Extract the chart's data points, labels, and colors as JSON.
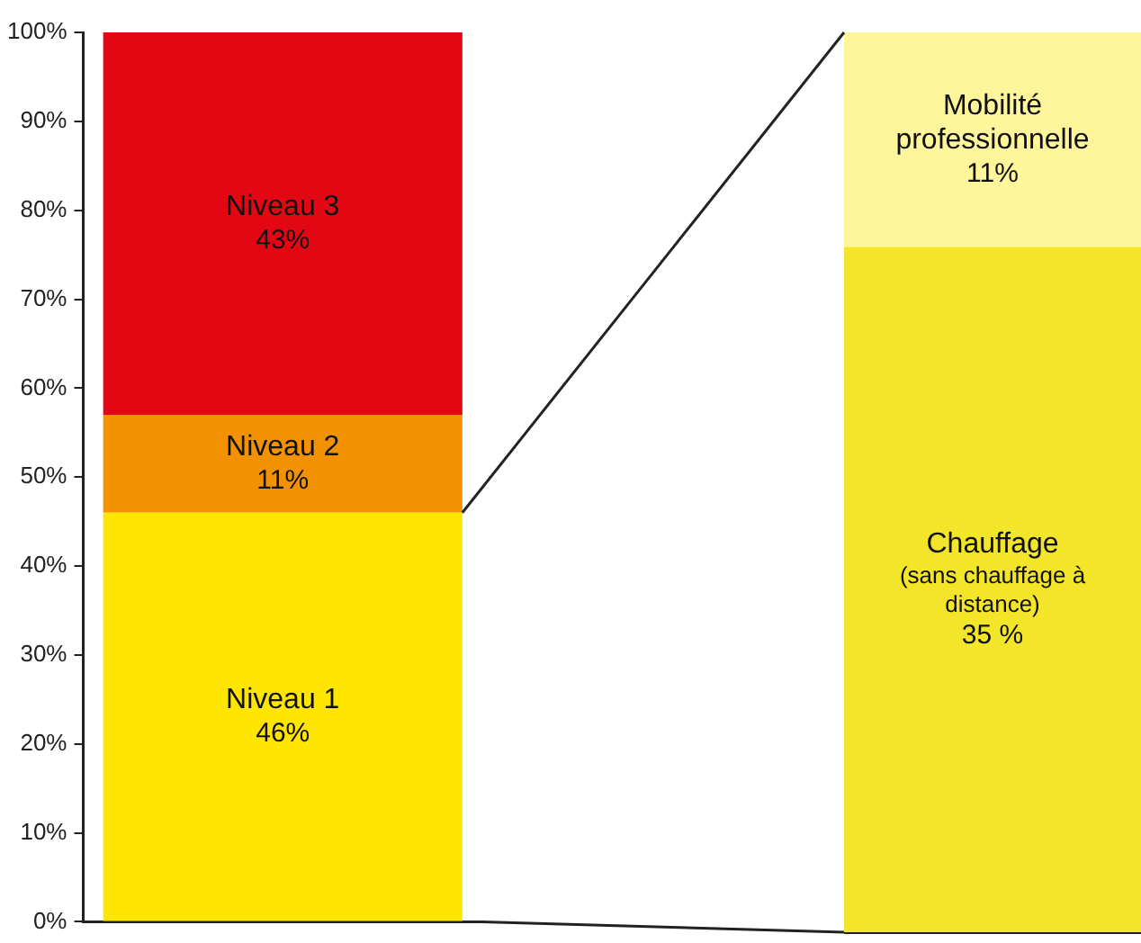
{
  "chart_data": [
    {
      "type": "bar",
      "stacked": true,
      "categories": [
        null
      ],
      "ylim": [
        0,
        100
      ],
      "yticks": [
        {
          "value": 0,
          "label": "0%"
        },
        {
          "value": 10,
          "label": "10%"
        },
        {
          "value": 20,
          "label": "20%"
        },
        {
          "value": 30,
          "label": "30%"
        },
        {
          "value": 40,
          "label": "40%"
        },
        {
          "value": 50,
          "label": "50%"
        },
        {
          "value": 60,
          "label": "60%"
        },
        {
          "value": 70,
          "label": "70%"
        },
        {
          "value": 80,
          "label": "80%"
        },
        {
          "value": 90,
          "label": "90%"
        },
        {
          "value": 100,
          "label": "100%"
        }
      ],
      "series": [
        {
          "name": "Niveau 1",
          "color": "#ffe600",
          "values": [
            46
          ],
          "value_labels": [
            "46%"
          ]
        },
        {
          "name": "Niveau 2",
          "color": "#f39200",
          "values": [
            11
          ],
          "value_labels": [
            "11%"
          ]
        },
        {
          "name": "Niveau 3",
          "color": "#e30613",
          "values": [
            43
          ],
          "value_labels": [
            "43%"
          ]
        }
      ],
      "grid": false,
      "legend": false
    },
    {
      "type": "bar",
      "stacked": true,
      "categories": [
        null
      ],
      "ylim": [
        0,
        46
      ],
      "tick_labels": false,
      "series": [
        {
          "name": "Chauffage",
          "color": "#f3e62a",
          "values": [
            35
          ],
          "value_labels": [
            "35 %"
          ]
        },
        {
          "name": "Mobilité professionnelle",
          "color": "#fff59a",
          "values": [
            11
          ],
          "value_labels": [
            "11%"
          ]
        }
      ],
      "annotations": [
        "(sans chauffage à distance)"
      ],
      "grid": false,
      "legend": false
    }
  ]
}
